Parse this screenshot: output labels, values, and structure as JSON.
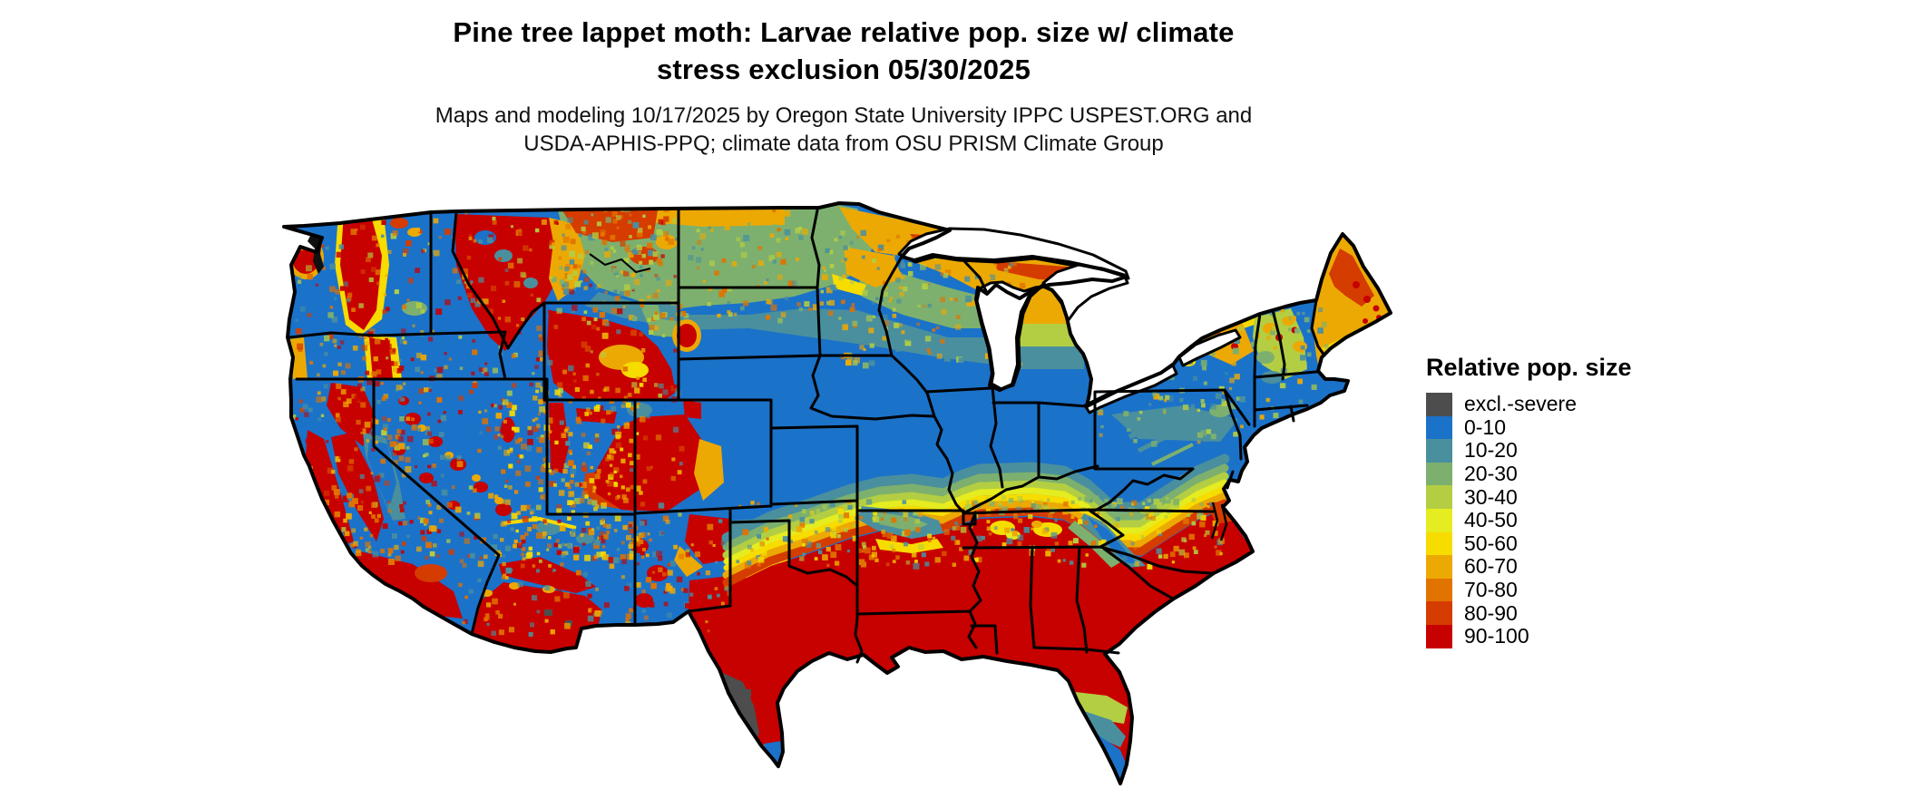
{
  "title": {
    "line1": "Pine tree lappet moth: Larvae relative pop. size w/ climate",
    "line2": "stress exclusion 05/30/2025"
  },
  "subtitle": {
    "line1": "Maps and modeling 10/17/2025 by Oregon State University IPPC USPEST.ORG and",
    "line2": "USDA-APHIS-PPQ; climate data from OSU PRISM Climate Group"
  },
  "legend": {
    "title": "Relative pop. size",
    "items": [
      {
        "label": "excl.-severe",
        "color": "#4d4d4d"
      },
      {
        "label": "0-10",
        "color": "#1b72c9"
      },
      {
        "label": "10-20",
        "color": "#4a8f9e"
      },
      {
        "label": "20-30",
        "color": "#7db06e"
      },
      {
        "label": "30-40",
        "color": "#b3ce42"
      },
      {
        "label": "40-50",
        "color": "#e5ec20"
      },
      {
        "label": "50-60",
        "color": "#f7dc00"
      },
      {
        "label": "60-70",
        "color": "#eca904"
      },
      {
        "label": "70-80",
        "color": "#e17300"
      },
      {
        "label": "80-90",
        "color": "#d53c00"
      },
      {
        "label": "90-100",
        "color": "#c70000"
      }
    ]
  },
  "map": {
    "type": "choropleth-raster",
    "area": "Contiguous United States",
    "background": "#ffffff",
    "regions_summary": [
      {
        "region": "Southern US: Texas, Gulf states, Georgia, Carolinas, north Florida",
        "class": "90-100"
      },
      {
        "region": "Central Plains, Corn Belt, Ohio Valley, mid-Atlantic lowlands",
        "class": "0-10"
      },
      {
        "region": "Northern Plains band (east Montana, Dakotas, Minnesota)",
        "class": "20-40"
      },
      {
        "region": "Lake Superior shores, upper Michigan, north Wisconsin/Minnesota",
        "class": "60-90"
      },
      {
        "region": "Maine, northern New England, Adirondacks",
        "class": "60-90"
      },
      {
        "region": "Mountain West",
        "class": "mosaic 0-100 following terrain"
      },
      {
        "region": "Big Bend of south Texas",
        "class": "excl.-severe"
      },
      {
        "region": "South Florida peninsula and south Texas tip",
        "class": "0-20"
      }
    ]
  }
}
